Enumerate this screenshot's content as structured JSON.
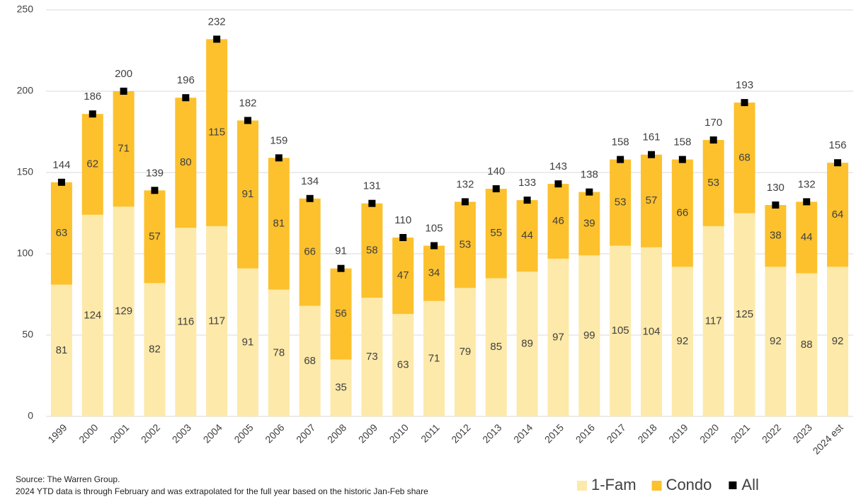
{
  "chart_data": {
    "type": "stacked_bar",
    "categories": [
      "1999",
      "2000",
      "2001",
      "2002",
      "2003",
      "2004",
      "2005",
      "2006",
      "2007",
      "2008",
      "2009",
      "2010",
      "2011",
      "2012",
      "2013",
      "2014",
      "2015",
      "2016",
      "2017",
      "2018",
      "2019",
      "2020",
      "2021",
      "2022",
      "2023",
      "2024 est"
    ],
    "series": [
      {
        "name": "1-Fam",
        "color": "#fde9a9",
        "values": [
          81,
          124,
          129,
          82,
          116,
          117,
          91,
          78,
          68,
          35,
          73,
          63,
          71,
          79,
          85,
          89,
          97,
          99,
          105,
          104,
          92,
          117,
          125,
          92,
          88,
          92
        ]
      },
      {
        "name": "Condo",
        "color": "#fcc12d",
        "values": [
          63,
          62,
          71,
          57,
          80,
          115,
          91,
          81,
          66,
          56,
          58,
          47,
          34,
          53,
          55,
          44,
          46,
          39,
          53,
          57,
          66,
          53,
          68,
          38,
          44,
          64
        ]
      },
      {
        "name": "All",
        "color": "#000000",
        "type": "marker",
        "values": [
          144,
          186,
          200,
          139,
          196,
          232,
          182,
          159,
          134,
          91,
          131,
          110,
          105,
          132,
          140,
          133,
          143,
          138,
          158,
          161,
          158,
          170,
          193,
          130,
          132,
          156
        ]
      }
    ],
    "ylim": [
      0,
      250
    ],
    "yticks": [
      0,
      50,
      100,
      150,
      200,
      250
    ],
    "grid": true,
    "legend": "bottom-right",
    "source": "Source: The Warren Group.",
    "note": "2024 YTD data is through February and was extrapolated for the full year based on the historic Jan-Feb share"
  }
}
